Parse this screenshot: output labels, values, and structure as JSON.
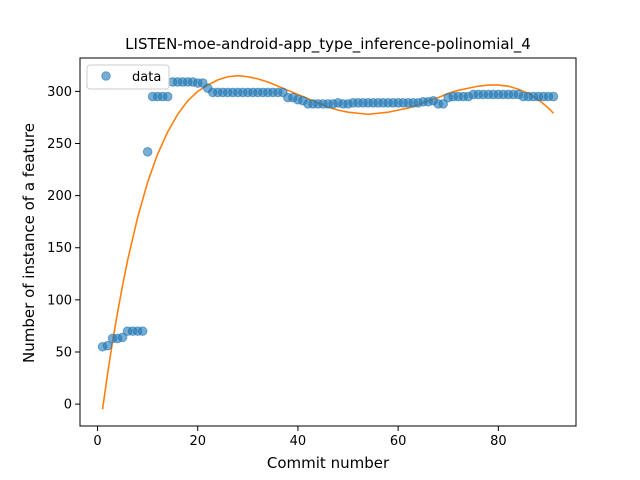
{
  "chart_data": {
    "type": "scatter",
    "title": "LISTEN-moe-android-app_type_inference-polinomial_4",
    "xlabel": "Commit number",
    "ylabel": "Number of instance of a feature",
    "xlim": [
      -3.5,
      95.5
    ],
    "ylim": [
      -21,
      332
    ],
    "xticks": [
      0,
      20,
      40,
      60,
      80
    ],
    "yticks": [
      0,
      50,
      100,
      150,
      200,
      250,
      300
    ],
    "legend": {
      "placement": "top-left",
      "entries": [
        "data"
      ]
    },
    "colors": {
      "data": "#1f77b4",
      "fit": "#ff7f0e"
    },
    "series": [
      {
        "name": "data",
        "kind": "scatter",
        "x": [
          1,
          2,
          3,
          4,
          5,
          6,
          7,
          8,
          9,
          10,
          11,
          12,
          13,
          14,
          15,
          16,
          17,
          18,
          19,
          20,
          21,
          22,
          23,
          24,
          25,
          26,
          27,
          28,
          29,
          30,
          31,
          32,
          33,
          34,
          35,
          36,
          37,
          38,
          39,
          40,
          41,
          42,
          43,
          44,
          45,
          46,
          47,
          48,
          49,
          50,
          51,
          52,
          53,
          54,
          55,
          56,
          57,
          58,
          59,
          60,
          61,
          62,
          63,
          64,
          65,
          66,
          67,
          68,
          69,
          70,
          71,
          72,
          73,
          74,
          75,
          76,
          77,
          78,
          79,
          80,
          81,
          82,
          83,
          84,
          85,
          86,
          87,
          88,
          89,
          90,
          91
        ],
        "y": [
          55,
          56,
          63,
          63,
          64,
          70,
          70,
          70,
          70,
          242,
          295,
          295,
          295,
          295,
          309,
          309,
          309,
          309,
          309,
          308,
          308,
          303,
          299,
          299,
          299,
          299,
          299,
          299,
          299,
          299,
          299,
          299,
          299,
          299,
          299,
          299,
          299,
          294,
          294,
          292,
          291,
          288,
          288,
          288,
          288,
          288,
          288,
          289,
          288,
          288,
          289,
          289,
          289,
          289,
          289,
          289,
          289,
          289,
          289,
          289,
          289,
          289,
          289,
          289,
          290,
          290,
          291,
          288,
          288,
          294,
          295,
          295,
          295,
          295,
          297,
          297,
          297,
          297,
          297,
          297,
          297,
          297,
          297,
          297,
          295,
          295,
          295,
          295,
          295,
          295,
          295
        ]
      },
      {
        "kind": "line",
        "fit": "polynomial degree 4",
        "x": [
          1,
          2,
          3,
          4,
          5,
          6,
          8,
          10,
          12,
          14,
          16,
          18,
          20,
          22,
          24,
          26,
          28,
          30,
          32,
          34,
          36,
          38,
          40,
          42,
          44,
          46,
          48,
          50,
          52,
          54,
          56,
          58,
          60,
          62,
          64,
          66,
          68,
          70,
          72,
          74,
          76,
          78,
          80,
          82,
          84,
          86,
          88,
          90,
          91
        ],
        "y": [
          -5,
          29,
          60,
          88,
          114,
          138,
          179,
          213,
          240,
          261,
          278,
          291,
          300,
          306,
          311,
          314,
          315,
          314,
          312,
          309,
          305,
          301,
          297,
          293,
          289,
          285,
          282,
          280,
          279,
          278,
          279,
          280,
          282,
          284,
          287,
          291,
          294,
          298,
          301,
          303,
          305,
          306,
          306,
          305,
          302,
          298,
          292,
          284,
          279
        ]
      }
    ]
  }
}
